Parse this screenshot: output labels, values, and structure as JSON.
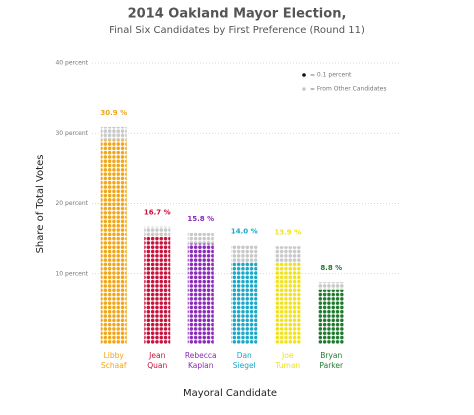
{
  "chart_data": {
    "type": "dotbar",
    "title": "2014 Oakland Mayor Election,",
    "subtitle": "Final Six Candidates by First Preference (Round 11)",
    "y_label": "Share of Total Votes",
    "x_label": "Mayoral Candidate",
    "categories": [
      [
        "Libby",
        "Schaaf"
      ],
      [
        "Jean",
        "Quan"
      ],
      [
        "Rebecca",
        "Kaplan"
      ],
      [
        "Dan",
        "Siegel"
      ],
      [
        "Joe",
        "Tuman"
      ],
      [
        "Bryan",
        "Parker"
      ]
    ],
    "series": [
      {
        "name": "= 0.1 percent",
        "color": "#111111",
        "colors": [
          "#f2a516",
          "#c8103a",
          "#8a2bb8",
          "#1aa8c8",
          "#f2e21a",
          "#1f7a2e"
        ],
        "values": [
          29.0,
          15.3,
          14.3,
          11.6,
          11.6,
          7.7
        ]
      },
      {
        "name": "= From Other Candidates",
        "color": "#c8c8c8",
        "values": [
          1.9,
          1.4,
          1.5,
          2.4,
          2.3,
          1.1
        ]
      }
    ],
    "totals": [
      30.9,
      16.7,
      15.8,
      14.0,
      13.9,
      8.8
    ],
    "value_labels": [
      "30.9 %",
      "16.7 %",
      "15.8 %",
      "14.0 %",
      "13.9 %",
      "8.8 %"
    ],
    "ylim": [
      0,
      40
    ],
    "yticks": [
      {
        "value": 10,
        "label": "10 percent"
      },
      {
        "value": 20,
        "label": "20 percent"
      },
      {
        "value": 30,
        "label": "30 percent"
      },
      {
        "value": 40,
        "label": "40 percent"
      }
    ],
    "grid": true
  }
}
